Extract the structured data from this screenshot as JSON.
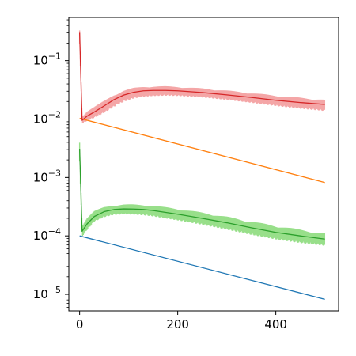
{
  "chart_data": {
    "type": "line",
    "title": "",
    "xlabel": "",
    "ylabel": "",
    "xlim": [
      -22,
      528
    ],
    "ylim": [
      5.2e-06,
      0.55
    ],
    "yscale": "log",
    "grid": false,
    "legend": "none",
    "x_ticks": [
      {
        "value": 0,
        "label": "0"
      },
      {
        "value": 200,
        "label": "200"
      },
      {
        "value": 400,
        "label": "400"
      }
    ],
    "y_ticks": [
      {
        "value": 1e-05,
        "base": "10",
        "exp": "−5"
      },
      {
        "value": 0.0001,
        "base": "10",
        "exp": "−4"
      },
      {
        "value": 0.001,
        "base": "10",
        "exp": "−3"
      },
      {
        "value": 0.01,
        "base": "10",
        "exp": "−2"
      },
      {
        "value": 0.1,
        "base": "10",
        "exp": "−1"
      }
    ],
    "series": [
      {
        "color": "#1f77b4",
        "band": false,
        "x": [
          0,
          500
        ],
        "y": [
          0.0001,
          8.2e-06
        ]
      },
      {
        "color": "#ff7f0e",
        "band": false,
        "x": [
          0,
          500
        ],
        "y": [
          0.0103,
          0.00082
        ]
      },
      {
        "color": "#2ca02c",
        "band": true,
        "band_color": "#98df8a",
        "x": [
          0,
          5,
          15,
          30,
          50,
          70,
          90,
          110,
          130,
          150,
          200,
          250,
          300,
          350,
          400,
          450,
          500
        ],
        "y": [
          0.0031,
          0.00012,
          0.00016,
          0.000215,
          0.00026,
          0.000283,
          0.00029,
          0.000288,
          0.000283,
          0.000272,
          0.000235,
          0.0002,
          0.000168,
          0.000138,
          0.000115,
          0.0001,
          8.8e-05
        ],
        "lower": [
          0.002,
          0.0001,
          0.00013,
          0.00018,
          0.000215,
          0.000235,
          0.00024,
          0.000238,
          0.000232,
          0.000222,
          0.00019,
          0.00016,
          0.000132,
          0.000108,
          9e-05,
          7.8e-05,
          7e-05
        ],
        "upper": [
          0.004,
          0.00015,
          0.0002,
          0.00026,
          0.000305,
          0.00033,
          0.00034,
          0.000338,
          0.000332,
          0.000322,
          0.000285,
          0.000245,
          0.000208,
          0.000172,
          0.000145,
          0.000125,
          0.000108
        ]
      },
      {
        "color": "#d62728",
        "band": true,
        "band_color": "#f4a6a7",
        "x": [
          0,
          5,
          15,
          30,
          50,
          70,
          90,
          110,
          130,
          150,
          175,
          200,
          250,
          300,
          350,
          400,
          450,
          500
        ],
        "y": [
          0.3,
          0.0095,
          0.0112,
          0.0132,
          0.0168,
          0.0215,
          0.0258,
          0.0288,
          0.0305,
          0.031,
          0.031,
          0.0305,
          0.0285,
          0.026,
          0.0235,
          0.021,
          0.0192,
          0.0178
        ],
        "lower": [
          0.2,
          0.0085,
          0.0095,
          0.0108,
          0.0132,
          0.0168,
          0.0205,
          0.0232,
          0.0248,
          0.0255,
          0.0258,
          0.0255,
          0.024,
          0.0218,
          0.0195,
          0.0172,
          0.0155,
          0.0142
        ],
        "upper": [
          0.33,
          0.011,
          0.0135,
          0.0158,
          0.02,
          0.0255,
          0.0302,
          0.0335,
          0.0352,
          0.0358,
          0.0358,
          0.0352,
          0.033,
          0.0303,
          0.0275,
          0.0248,
          0.0228,
          0.021
        ]
      }
    ]
  }
}
